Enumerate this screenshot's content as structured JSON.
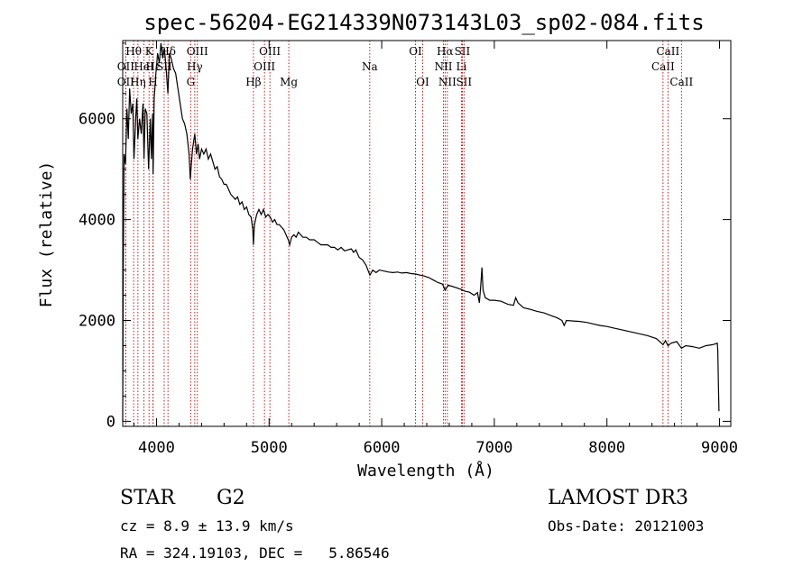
{
  "chart_data": {
    "type": "line",
    "title": "spec-56204-EG214339N073143L03_sp02-084.fits",
    "xlabel": "Wavelength (Å)",
    "ylabel": "Flux (relative)",
    "xlim": [
      3700,
      9100
    ],
    "ylim": [
      -100,
      7550
    ],
    "xticks": [
      4000,
      5000,
      6000,
      7000,
      8000,
      9000
    ],
    "xtick_labels": [
      "4000",
      "5000",
      "6000",
      "7000",
      "8000",
      "9000"
    ],
    "yticks": [
      0,
      2000,
      4000,
      6000
    ],
    "ytick_labels": [
      "0",
      "2000",
      "4000",
      "6000"
    ],
    "grid": false,
    "series": [
      {
        "name": "spectrum",
        "points": [
          [
            3700,
            0
          ],
          [
            3705,
            3000
          ],
          [
            3712,
            5300
          ],
          [
            3725,
            5100
          ],
          [
            3738,
            6200
          ],
          [
            3750,
            5600
          ],
          [
            3762,
            6600
          ],
          [
            3775,
            6100
          ],
          [
            3790,
            6300
          ],
          [
            3800,
            5200
          ],
          [
            3815,
            6000
          ],
          [
            3825,
            6400
          ],
          [
            3835,
            5600
          ],
          [
            3850,
            6000
          ],
          [
            3865,
            5700
          ],
          [
            3880,
            6300
          ],
          [
            3889,
            5200
          ],
          [
            3900,
            6200
          ],
          [
            3915,
            6100
          ],
          [
            3930,
            5000
          ],
          [
            3945,
            6000
          ],
          [
            3955,
            5200
          ],
          [
            3965,
            6100
          ],
          [
            3970,
            4900
          ],
          [
            3980,
            6400
          ],
          [
            3995,
            6900
          ],
          [
            4010,
            7300
          ],
          [
            4025,
            7100
          ],
          [
            4040,
            7500
          ],
          [
            4055,
            7200
          ],
          [
            4070,
            7400
          ],
          [
            4085,
            7000
          ],
          [
            4101,
            6500
          ],
          [
            4115,
            7300
          ],
          [
            4130,
            7200
          ],
          [
            4150,
            7000
          ],
          [
            4170,
            6900
          ],
          [
            4190,
            6600
          ],
          [
            4210,
            6300
          ],
          [
            4230,
            6000
          ],
          [
            4250,
            5900
          ],
          [
            4270,
            5700
          ],
          [
            4290,
            5300
          ],
          [
            4300,
            4800
          ],
          [
            4310,
            5100
          ],
          [
            4320,
            5400
          ],
          [
            4340,
            5700
          ],
          [
            4355,
            5300
          ],
          [
            4370,
            5500
          ],
          [
            4383,
            5200
          ],
          [
            4400,
            5400
          ],
          [
            4420,
            5300
          ],
          [
            4440,
            5400
          ],
          [
            4460,
            5200
          ],
          [
            4480,
            5300
          ],
          [
            4500,
            5150
          ],
          [
            4520,
            5000
          ],
          [
            4540,
            5050
          ],
          [
            4560,
            4850
          ],
          [
            4580,
            4800
          ],
          [
            4600,
            4700
          ],
          [
            4620,
            4700
          ],
          [
            4640,
            4600
          ],
          [
            4660,
            4500
          ],
          [
            4680,
            4450
          ],
          [
            4700,
            4400
          ],
          [
            4720,
            4450
          ],
          [
            4740,
            4300
          ],
          [
            4760,
            4350
          ],
          [
            4780,
            4200
          ],
          [
            4800,
            4250
          ],
          [
            4820,
            4100
          ],
          [
            4840,
            4050
          ],
          [
            4855,
            3800
          ],
          [
            4861,
            3500
          ],
          [
            4870,
            3900
          ],
          [
            4890,
            4100
          ],
          [
            4910,
            4200
          ],
          [
            4930,
            4100
          ],
          [
            4950,
            4200
          ],
          [
            4970,
            4050
          ],
          [
            4990,
            4100
          ],
          [
            5010,
            4050
          ],
          [
            5030,
            3950
          ],
          [
            5050,
            4000
          ],
          [
            5070,
            3900
          ],
          [
            5090,
            3900
          ],
          [
            5110,
            3850
          ],
          [
            5130,
            3800
          ],
          [
            5150,
            3700
          ],
          [
            5170,
            3600
          ],
          [
            5183,
            3500
          ],
          [
            5200,
            3650
          ],
          [
            5220,
            3700
          ],
          [
            5240,
            3650
          ],
          [
            5260,
            3750
          ],
          [
            5280,
            3700
          ],
          [
            5300,
            3650
          ],
          [
            5330,
            3650
          ],
          [
            5360,
            3600
          ],
          [
            5400,
            3600
          ],
          [
            5430,
            3550
          ],
          [
            5460,
            3500
          ],
          [
            5490,
            3500
          ],
          [
            5520,
            3500
          ],
          [
            5550,
            3450
          ],
          [
            5580,
            3450
          ],
          [
            5610,
            3400
          ],
          [
            5640,
            3450
          ],
          [
            5670,
            3380
          ],
          [
            5700,
            3400
          ],
          [
            5730,
            3420
          ],
          [
            5750,
            3350
          ],
          [
            5770,
            3400
          ],
          [
            5800,
            3250
          ],
          [
            5830,
            3200
          ],
          [
            5860,
            3100
          ],
          [
            5895,
            2900
          ],
          [
            5920,
            3000
          ],
          [
            5950,
            2950
          ],
          [
            5980,
            3000
          ],
          [
            6020,
            2980
          ],
          [
            6060,
            2960
          ],
          [
            6100,
            2950
          ],
          [
            6140,
            2960
          ],
          [
            6180,
            2940
          ],
          [
            6220,
            2950
          ],
          [
            6260,
            2930
          ],
          [
            6300,
            2920
          ],
          [
            6340,
            2900
          ],
          [
            6380,
            2880
          ],
          [
            6420,
            2850
          ],
          [
            6460,
            2800
          ],
          [
            6500,
            2750
          ],
          [
            6540,
            2720
          ],
          [
            6563,
            2600
          ],
          [
            6590,
            2700
          ],
          [
            6620,
            2680
          ],
          [
            6660,
            2650
          ],
          [
            6700,
            2620
          ],
          [
            6740,
            2580
          ],
          [
            6780,
            2560
          ],
          [
            6820,
            2500
          ],
          [
            6850,
            2550
          ],
          [
            6867,
            2350
          ],
          [
            6880,
            2700
          ],
          [
            6890,
            3050
          ],
          [
            6900,
            2600
          ],
          [
            6920,
            2450
          ],
          [
            6960,
            2400
          ],
          [
            7000,
            2400
          ],
          [
            7060,
            2380
          ],
          [
            7120,
            2320
          ],
          [
            7170,
            2300
          ],
          [
            7190,
            2450
          ],
          [
            7210,
            2350
          ],
          [
            7260,
            2250
          ],
          [
            7320,
            2220
          ],
          [
            7380,
            2180
          ],
          [
            7440,
            2150
          ],
          [
            7500,
            2100
          ],
          [
            7560,
            2050
          ],
          [
            7600,
            2000
          ],
          [
            7620,
            1900
          ],
          [
            7640,
            2000
          ],
          [
            7700,
            1990
          ],
          [
            7760,
            1980
          ],
          [
            7820,
            1960
          ],
          [
            7880,
            1930
          ],
          [
            7940,
            1900
          ],
          [
            8000,
            1880
          ],
          [
            8060,
            1850
          ],
          [
            8120,
            1820
          ],
          [
            8200,
            1780
          ],
          [
            8280,
            1740
          ],
          [
            8360,
            1700
          ],
          [
            8440,
            1640
          ],
          [
            8498,
            1520
          ],
          [
            8520,
            1600
          ],
          [
            8542,
            1500
          ],
          [
            8570,
            1550
          ],
          [
            8620,
            1580
          ],
          [
            8662,
            1450
          ],
          [
            8700,
            1500
          ],
          [
            8760,
            1480
          ],
          [
            8820,
            1450
          ],
          [
            8880,
            1500
          ],
          [
            8940,
            1520
          ],
          [
            8980,
            1550
          ],
          [
            8985,
            1400
          ],
          [
            8990,
            700
          ],
          [
            8995,
            200
          ]
        ]
      }
    ],
    "line_markers": [
      {
        "wavelength": 3727,
        "label": "OII",
        "row": 1
      },
      {
        "wavelength": 3727,
        "label": "OII",
        "row": 2
      },
      {
        "wavelength": 3797,
        "label": "Hθ",
        "row": 0
      },
      {
        "wavelength": 3835,
        "label": "Hη",
        "row": 2
      },
      {
        "wavelength": 3889,
        "label": "HeI",
        "row": 1
      },
      {
        "wavelength": 3934,
        "label": "K",
        "row": 0
      },
      {
        "wavelength": 3969,
        "label": "H",
        "row": 2
      },
      {
        "wavelength": 3970,
        "label": "Hε",
        "row": 1
      },
      {
        "wavelength": 4068,
        "label": "SII",
        "row": 1
      },
      {
        "wavelength": 4102,
        "label": "Hδ",
        "row": 0
      },
      {
        "wavelength": 4304,
        "label": "G",
        "row": 2
      },
      {
        "wavelength": 4340,
        "label": "Hγ",
        "row": 1
      },
      {
        "wavelength": 4363,
        "label": "OIII",
        "row": 0
      },
      {
        "wavelength": 4861,
        "label": "Hβ",
        "row": 2
      },
      {
        "wavelength": 4959,
        "label": "OIII",
        "row": 1
      },
      {
        "wavelength": 5007,
        "label": "OIII",
        "row": 0
      },
      {
        "wavelength": 5175,
        "label": "Mg",
        "row": 2
      },
      {
        "wavelength": 5894,
        "label": "Na",
        "row": 1
      },
      {
        "wavelength": 6300,
        "label": "OI",
        "row": 0
      },
      {
        "wavelength": 6364,
        "label": "OI",
        "row": 2
      },
      {
        "wavelength": 6548,
        "label": "NII",
        "row": 1
      },
      {
        "wavelength": 6563,
        "label": "Hα",
        "row": 0
      },
      {
        "wavelength": 6583,
        "label": "NII",
        "row": 2
      },
      {
        "wavelength": 6708,
        "label": "Li",
        "row": 1
      },
      {
        "wavelength": 6716,
        "label": "SII",
        "row": 0
      },
      {
        "wavelength": 6731,
        "label": "SII",
        "row": 2
      },
      {
        "wavelength": 8498,
        "label": "CaII",
        "row": 1
      },
      {
        "wavelength": 8542,
        "label": "CaII",
        "row": 0
      },
      {
        "wavelength": 8662,
        "label": "CaII",
        "row": 2
      }
    ]
  },
  "info": {
    "class": "STAR",
    "subclass": "G2",
    "survey": "LAMOST DR3",
    "cz": "cz = 8.9 ± 13.9 km/s",
    "obs_date": "Obs-Date: 20121003",
    "radec": "RA = 324.19103, DEC =   5.86546"
  },
  "colors": {
    "line_marker": "#c00000",
    "spectrum": "#000000",
    "axes": "#000000"
  }
}
